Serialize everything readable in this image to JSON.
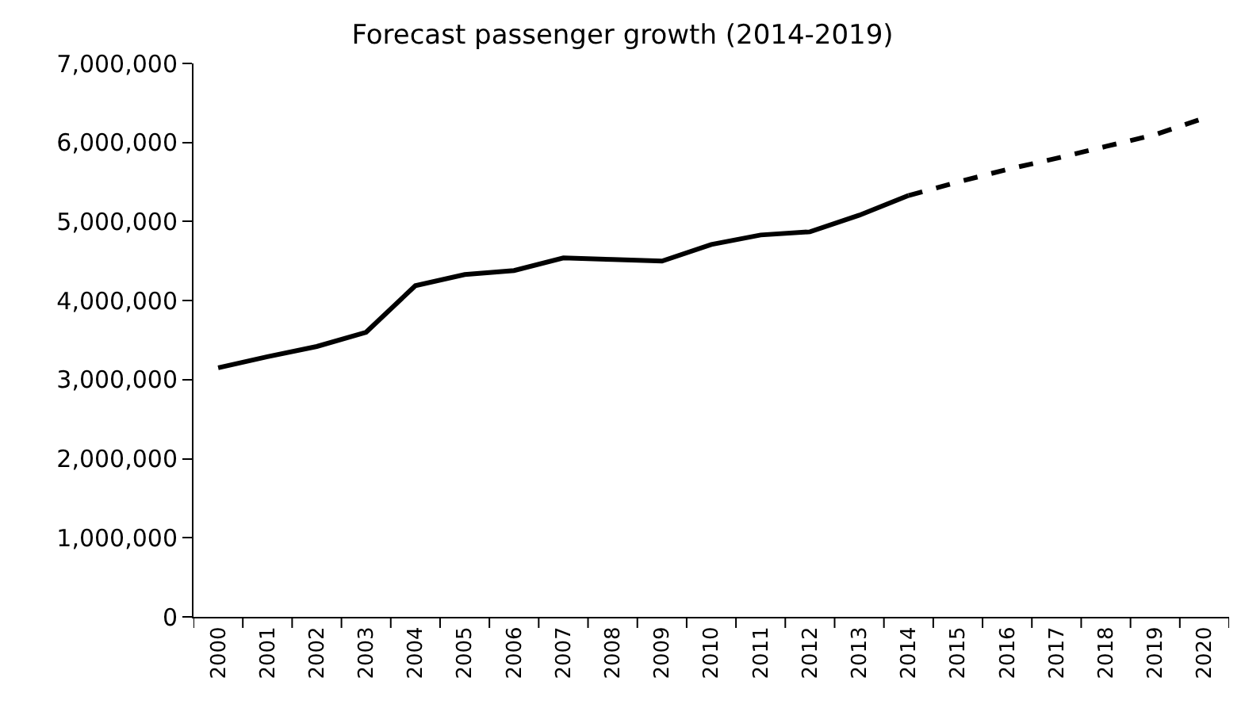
{
  "chart_data": {
    "type": "line",
    "title": "Forecast passenger growth (2014-2019)",
    "categories": [
      "2000",
      "2001",
      "2002",
      "2003",
      "2004",
      "2005",
      "2006",
      "2007",
      "2008",
      "2009",
      "2010",
      "2011",
      "2012",
      "2013",
      "2014",
      "2015",
      "2016",
      "2017",
      "2018",
      "2019",
      "2020"
    ],
    "series": [
      {
        "color": "#000000",
        "line_style": "solid",
        "values": [
          3150000,
          3290000,
          3420000,
          3600000,
          4190000,
          4330000,
          4380000,
          4540000,
          4520000,
          4500000,
          4710000,
          4830000,
          4870000,
          5080000,
          5330000,
          null,
          null,
          null,
          null,
          null,
          null
        ]
      },
      {
        "color": "#000000",
        "line_style": "dashed",
        "values": [
          null,
          null,
          null,
          null,
          null,
          null,
          null,
          null,
          null,
          null,
          null,
          null,
          null,
          null,
          5330000,
          5500000,
          5660000,
          5800000,
          5950000,
          6100000,
          6310000
        ]
      }
    ],
    "ylim": [
      0,
      7000000
    ],
    "yticks": [
      {
        "value": 0,
        "label": "0"
      },
      {
        "value": 1000000,
        "label": "1,000,000"
      },
      {
        "value": 2000000,
        "label": "2,000,000"
      },
      {
        "value": 3000000,
        "label": "3,000,000"
      },
      {
        "value": 4000000,
        "label": "4,000,000"
      },
      {
        "value": 5000000,
        "label": "5,000,000"
      },
      {
        "value": 6000000,
        "label": "6,000,000"
      },
      {
        "value": 7000000,
        "label": "7,000,000"
      }
    ],
    "grid": false,
    "marker": "none"
  }
}
